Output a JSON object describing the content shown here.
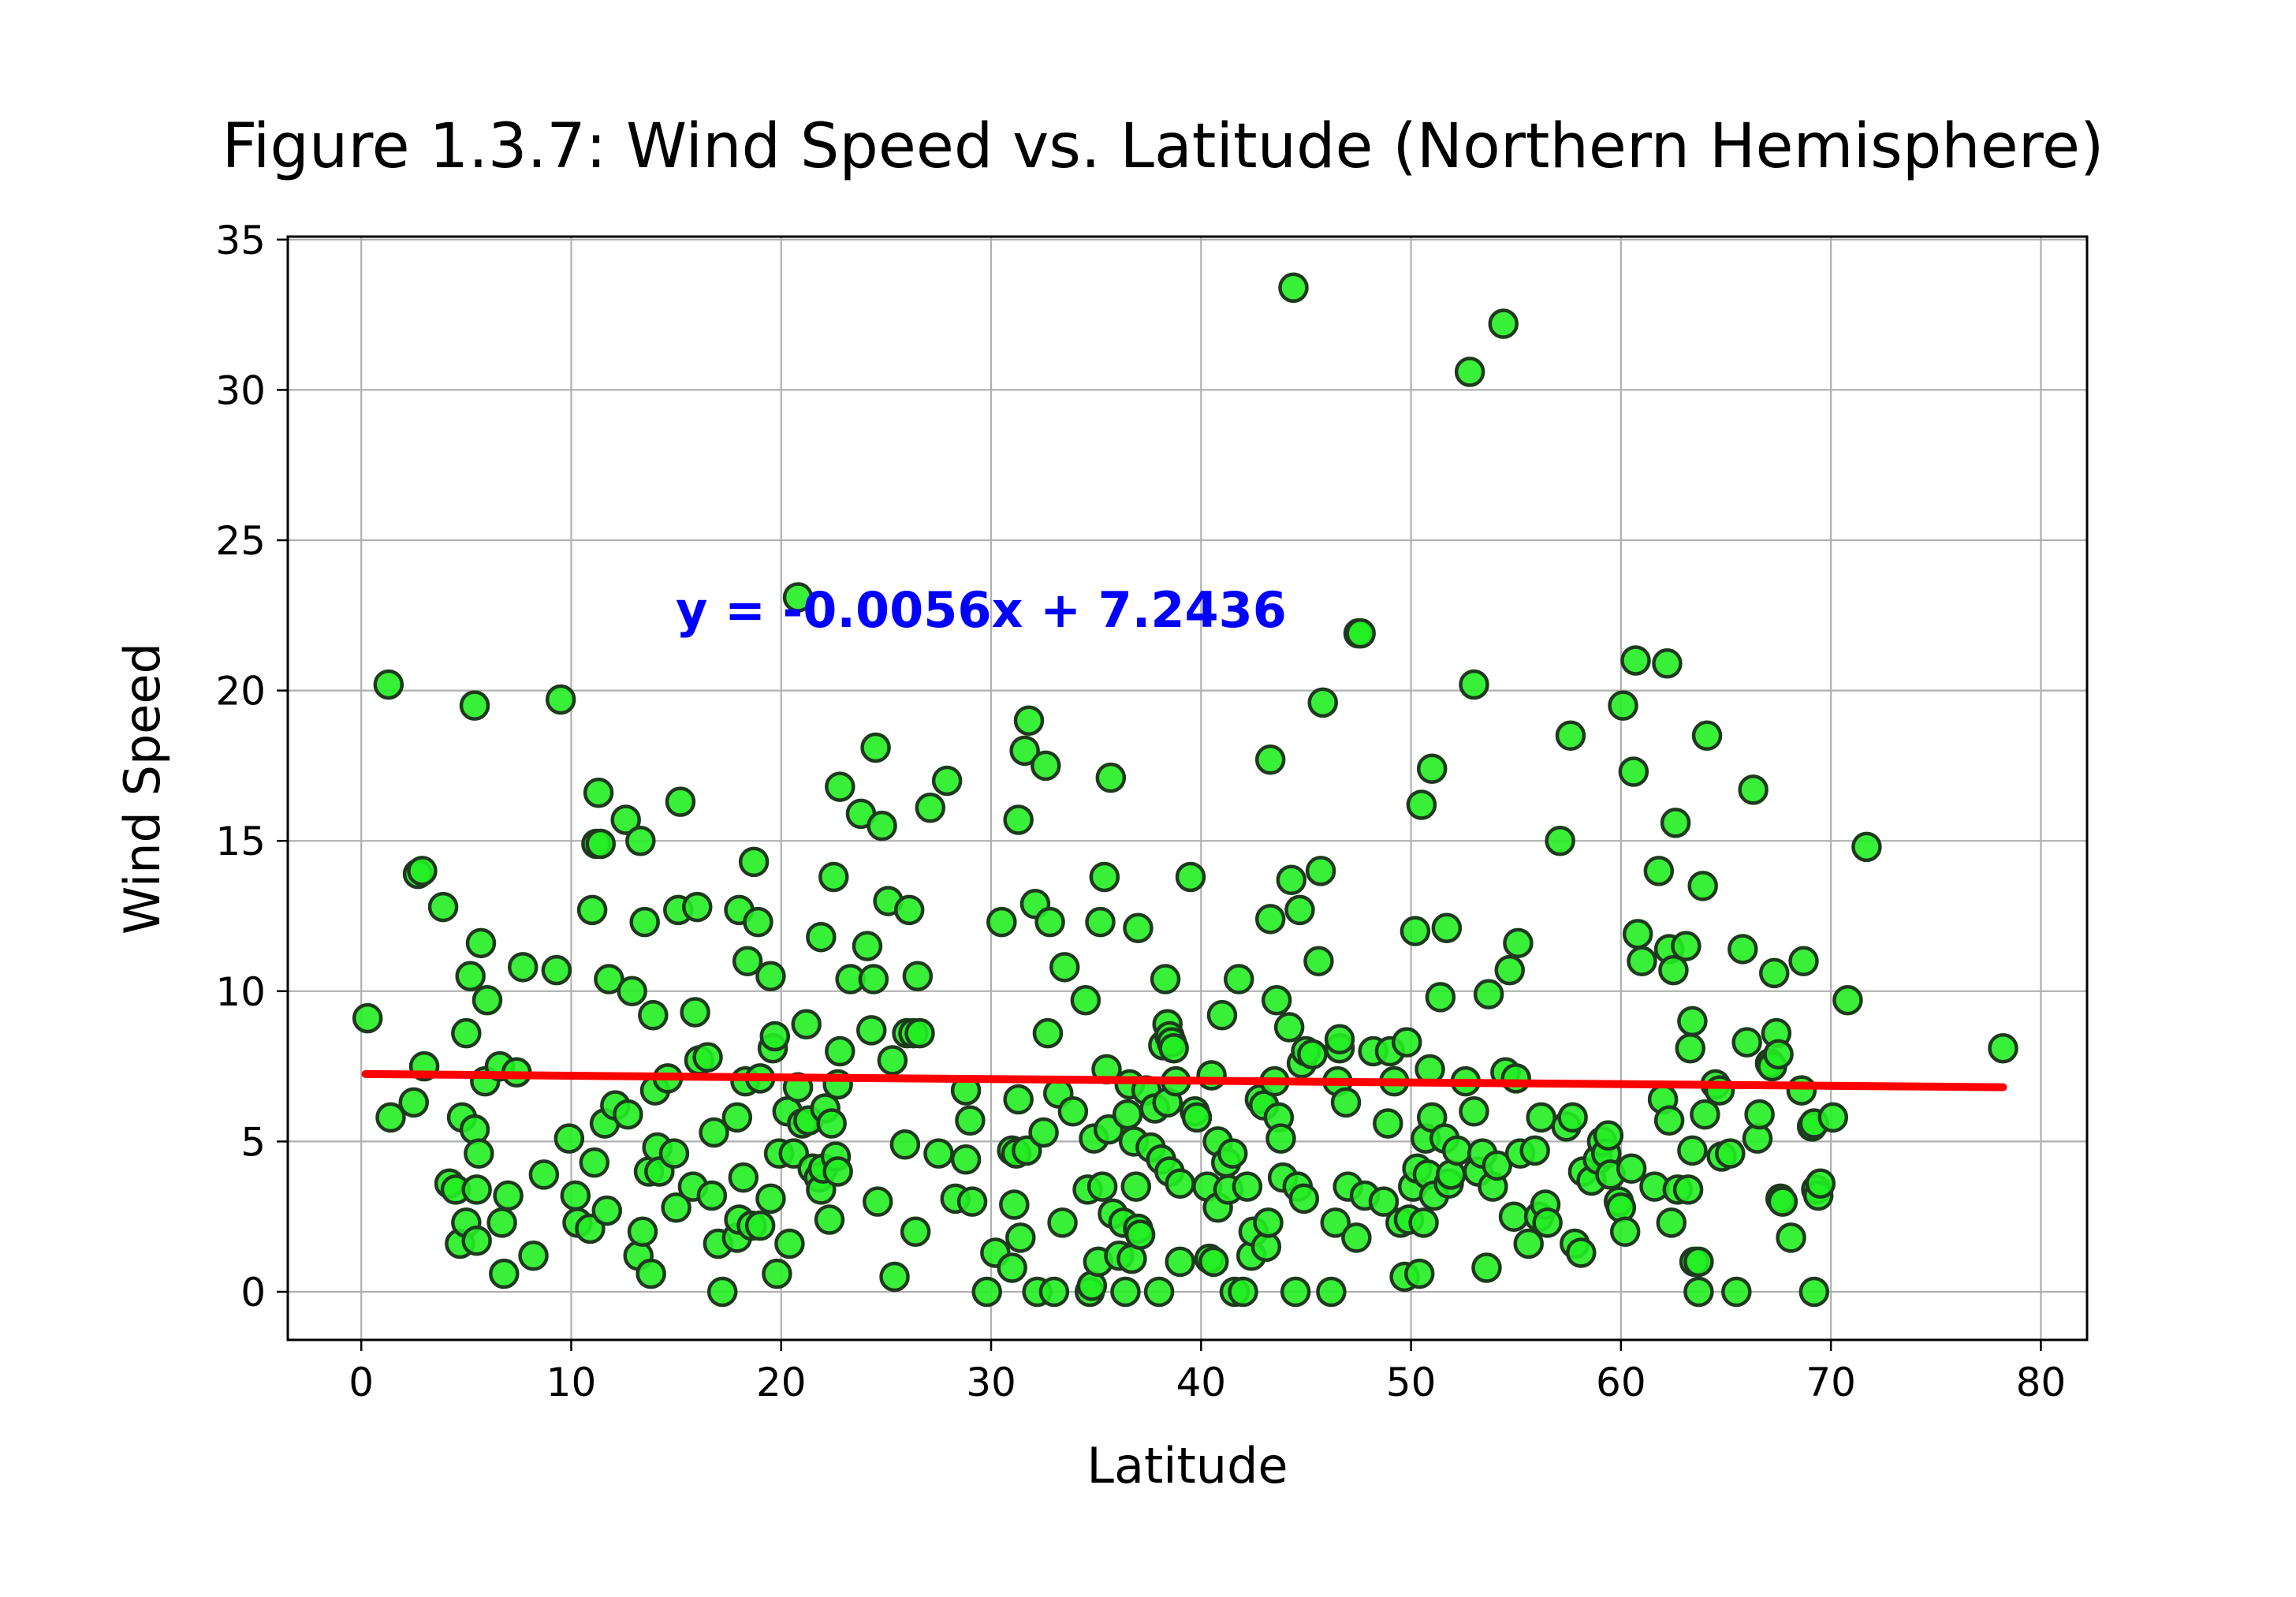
{
  "chart_data": {
    "type": "scatter",
    "title": "Figure 1.3.7: Wind Speed vs. Latitude (Northern Hemisphere)",
    "xlabel": "Latitude",
    "ylabel": "Wind Speed",
    "xlim": [
      -3.5,
      82.2
    ],
    "ylim": [
      -1.6,
      35.1
    ],
    "xticks": [
      0,
      10,
      20,
      30,
      40,
      50,
      60,
      70,
      80
    ],
    "yticks": [
      0,
      5,
      10,
      15,
      20,
      25,
      30,
      35
    ],
    "grid": true,
    "annotation": "y = -0.0056x + 7.2436",
    "regression": {
      "slope": -0.0056,
      "intercept": 7.2436,
      "x_range": [
        0.2,
        78.2
      ]
    },
    "colors": {
      "marker_fill": "#22ee22",
      "marker_edge": "#1e3a1e",
      "regression_line": "#ff0000",
      "annotation": "#0000ff",
      "grid": "#b0b0b0"
    },
    "points": [
      [
        0.3,
        9.1
      ],
      [
        1.3,
        20.2
      ],
      [
        1.4,
        5.8
      ],
      [
        2.5,
        6.3
      ],
      [
        2.7,
        13.9
      ],
      [
        2.9,
        14.0
      ],
      [
        3.0,
        7.5
      ],
      [
        3.9,
        12.8
      ],
      [
        4.2,
        3.6
      ],
      [
        4.5,
        3.4
      ],
      [
        4.7,
        1.6
      ],
      [
        4.8,
        5.8
      ],
      [
        5.0,
        2.3
      ],
      [
        5.0,
        8.6
      ],
      [
        5.2,
        10.5
      ],
      [
        5.4,
        19.5
      ],
      [
        5.4,
        5.4
      ],
      [
        5.5,
        1.7
      ],
      [
        5.5,
        3.4
      ],
      [
        5.6,
        4.6
      ],
      [
        5.7,
        11.6
      ],
      [
        5.9,
        7.0
      ],
      [
        6.0,
        9.7
      ],
      [
        6.6,
        7.5
      ],
      [
        6.7,
        2.3
      ],
      [
        6.8,
        0.6
      ],
      [
        7.0,
        3.2
      ],
      [
        7.4,
        7.3
      ],
      [
        7.7,
        10.8
      ],
      [
        8.2,
        1.2
      ],
      [
        8.7,
        3.9
      ],
      [
        9.3,
        10.7
      ],
      [
        9.5,
        19.7
      ],
      [
        9.9,
        5.1
      ],
      [
        10.2,
        3.2
      ],
      [
        10.3,
        2.3
      ],
      [
        10.9,
        2.1
      ],
      [
        11.0,
        12.7
      ],
      [
        11.1,
        4.3
      ],
      [
        11.2,
        14.9
      ],
      [
        11.3,
        16.6
      ],
      [
        11.4,
        14.9
      ],
      [
        11.6,
        5.6
      ],
      [
        11.7,
        2.7
      ],
      [
        11.8,
        10.4
      ],
      [
        12.1,
        6.2
      ],
      [
        12.6,
        15.7
      ],
      [
        12.7,
        5.9
      ],
      [
        12.9,
        10.0
      ],
      [
        13.2,
        1.2
      ],
      [
        13.3,
        15.0
      ],
      [
        13.4,
        2.0
      ],
      [
        13.5,
        12.3
      ],
      [
        13.7,
        4.0
      ],
      [
        13.8,
        0.6
      ],
      [
        13.9,
        9.2
      ],
      [
        14.0,
        6.7
      ],
      [
        14.1,
        4.8
      ],
      [
        14.2,
        4.0
      ],
      [
        14.6,
        7.1
      ],
      [
        14.9,
        4.6
      ],
      [
        15.0,
        2.8
      ],
      [
        15.1,
        12.7
      ],
      [
        15.2,
        16.3
      ],
      [
        15.8,
        3.5
      ],
      [
        15.9,
        9.3
      ],
      [
        16.0,
        12.8
      ],
      [
        16.1,
        7.7
      ],
      [
        16.5,
        7.8
      ],
      [
        16.7,
        3.2
      ],
      [
        16.8,
        5.3
      ],
      [
        17.0,
        1.6
      ],
      [
        17.2,
        0.0
      ],
      [
        17.9,
        1.8
      ],
      [
        17.9,
        5.8
      ],
      [
        18.0,
        12.7
      ],
      [
        18.0,
        2.4
      ],
      [
        18.2,
        3.8
      ],
      [
        18.3,
        7.0
      ],
      [
        18.4,
        11.0
      ],
      [
        18.6,
        2.2
      ],
      [
        18.7,
        14.3
      ],
      [
        18.9,
        12.3
      ],
      [
        19.0,
        7.1
      ],
      [
        19.0,
        2.2
      ],
      [
        19.5,
        3.1
      ],
      [
        19.5,
        10.5
      ],
      [
        19.6,
        8.1
      ],
      [
        19.7,
        8.5
      ],
      [
        19.8,
        0.6
      ],
      [
        19.9,
        4.6
      ],
      [
        20.3,
        6.0
      ],
      [
        20.4,
        1.6
      ],
      [
        20.6,
        4.6
      ],
      [
        20.8,
        23.1
      ],
      [
        20.8,
        6.8
      ],
      [
        21.0,
        5.6
      ],
      [
        21.2,
        8.9
      ],
      [
        21.3,
        5.7
      ],
      [
        21.5,
        4.1
      ],
      [
        21.8,
        3.8
      ],
      [
        21.9,
        11.8
      ],
      [
        21.9,
        3.4
      ],
      [
        22.0,
        4.1
      ],
      [
        22.1,
        6.1
      ],
      [
        22.3,
        2.4
      ],
      [
        22.4,
        5.6
      ],
      [
        22.5,
        13.8
      ],
      [
        22.6,
        4.5
      ],
      [
        22.7,
        6.9
      ],
      [
        22.7,
        4.0
      ],
      [
        22.8,
        16.8
      ],
      [
        22.8,
        8.0
      ],
      [
        23.3,
        10.4
      ],
      [
        23.8,
        15.9
      ],
      [
        24.1,
        11.5
      ],
      [
        24.3,
        8.7
      ],
      [
        24.4,
        10.4
      ],
      [
        24.5,
        18.1
      ],
      [
        24.6,
        3.0
      ],
      [
        24.8,
        15.5
      ],
      [
        25.1,
        13.0
      ],
      [
        25.3,
        7.7
      ],
      [
        25.4,
        0.5
      ],
      [
        25.9,
        4.9
      ],
      [
        26.0,
        8.6
      ],
      [
        26.1,
        12.7
      ],
      [
        26.3,
        8.6
      ],
      [
        26.4,
        2.0
      ],
      [
        26.5,
        10.5
      ],
      [
        26.6,
        8.6
      ],
      [
        27.1,
        16.1
      ],
      [
        27.5,
        4.6
      ],
      [
        27.9,
        17.0
      ],
      [
        28.3,
        3.1
      ],
      [
        28.8,
        6.7
      ],
      [
        28.8,
        4.4
      ],
      [
        29.0,
        5.7
      ],
      [
        29.1,
        3.0
      ],
      [
        29.8,
        0.0
      ],
      [
        30.2,
        1.3
      ],
      [
        30.5,
        12.3
      ],
      [
        31.0,
        4.7
      ],
      [
        31.0,
        0.8
      ],
      [
        31.1,
        2.9
      ],
      [
        31.2,
        4.6
      ],
      [
        31.3,
        15.7
      ],
      [
        31.3,
        6.4
      ],
      [
        31.4,
        1.8
      ],
      [
        31.6,
        18.0
      ],
      [
        31.7,
        4.7
      ],
      [
        31.8,
        19.0
      ],
      [
        32.1,
        12.9
      ],
      [
        32.2,
        0.0
      ],
      [
        32.5,
        5.3
      ],
      [
        32.6,
        17.5
      ],
      [
        32.7,
        8.6
      ],
      [
        32.8,
        12.3
      ],
      [
        33.0,
        0.0
      ],
      [
        33.2,
        6.6
      ],
      [
        33.4,
        2.3
      ],
      [
        33.5,
        10.8
      ],
      [
        33.9,
        6.0
      ],
      [
        34.5,
        9.7
      ],
      [
        34.6,
        3.4
      ],
      [
        34.7,
        0.0
      ],
      [
        34.8,
        0.2
      ],
      [
        34.9,
        5.1
      ],
      [
        35.1,
        1.0
      ],
      [
        35.2,
        12.3
      ],
      [
        35.3,
        3.5
      ],
      [
        35.4,
        13.8
      ],
      [
        35.5,
        7.4
      ],
      [
        35.6,
        5.4
      ],
      [
        35.7,
        17.1
      ],
      [
        35.8,
        2.6
      ],
      [
        36.1,
        1.2
      ],
      [
        36.3,
        2.3
      ],
      [
        36.4,
        0.0
      ],
      [
        36.5,
        5.9
      ],
      [
        36.6,
        6.9
      ],
      [
        36.7,
        1.1
      ],
      [
        36.8,
        5.0
      ],
      [
        36.9,
        3.5
      ],
      [
        37.0,
        2.1
      ],
      [
        37.0,
        12.1
      ],
      [
        37.1,
        1.9
      ],
      [
        37.4,
        6.7
      ],
      [
        37.6,
        4.8
      ],
      [
        37.8,
        6.1
      ],
      [
        38.0,
        0.0
      ],
      [
        38.1,
        4.4
      ],
      [
        38.2,
        8.2
      ],
      [
        38.3,
        10.4
      ],
      [
        38.4,
        8.9
      ],
      [
        38.4,
        6.3
      ],
      [
        38.5,
        8.5
      ],
      [
        38.5,
        4.0
      ],
      [
        38.6,
        8.3
      ],
      [
        38.7,
        8.1
      ],
      [
        38.8,
        7.0
      ],
      [
        39.0,
        3.6
      ],
      [
        39.0,
        1.0
      ],
      [
        39.5,
        13.8
      ],
      [
        39.7,
        6.0
      ],
      [
        39.8,
        5.8
      ],
      [
        40.3,
        3.5
      ],
      [
        40.4,
        1.1
      ],
      [
        40.5,
        7.2
      ],
      [
        40.6,
        1.0
      ],
      [
        40.8,
        2.8
      ],
      [
        40.8,
        5.0
      ],
      [
        41.0,
        9.2
      ],
      [
        41.2,
        4.3
      ],
      [
        41.3,
        3.4
      ],
      [
        41.5,
        4.6
      ],
      [
        41.6,
        0.0
      ],
      [
        41.8,
        10.4
      ],
      [
        42.0,
        0.0
      ],
      [
        42.2,
        3.5
      ],
      [
        42.4,
        1.2
      ],
      [
        42.5,
        2.0
      ],
      [
        42.8,
        6.4
      ],
      [
        43.0,
        6.2
      ],
      [
        43.1,
        1.5
      ],
      [
        43.2,
        2.3
      ],
      [
        43.3,
        12.4
      ],
      [
        43.3,
        17.7
      ],
      [
        43.5,
        7.0
      ],
      [
        43.6,
        9.7
      ],
      [
        43.7,
        5.8
      ],
      [
        43.8,
        5.1
      ],
      [
        43.9,
        3.8
      ],
      [
        44.2,
        8.8
      ],
      [
        44.3,
        13.7
      ],
      [
        44.4,
        33.4
      ],
      [
        44.5,
        0.0
      ],
      [
        44.6,
        3.5
      ],
      [
        44.7,
        12.7
      ],
      [
        44.8,
        7.6
      ],
      [
        44.9,
        3.1
      ],
      [
        45.0,
        8.0
      ],
      [
        45.3,
        7.9
      ],
      [
        45.6,
        11.0
      ],
      [
        45.7,
        14.0
      ],
      [
        45.8,
        19.6
      ],
      [
        46.2,
        0.0
      ],
      [
        46.4,
        2.3
      ],
      [
        46.5,
        7.0
      ],
      [
        46.6,
        8.1
      ],
      [
        46.6,
        8.4
      ],
      [
        46.9,
        6.3
      ],
      [
        47.0,
        3.5
      ],
      [
        47.4,
        1.8
      ],
      [
        47.5,
        21.9
      ],
      [
        47.6,
        21.9
      ],
      [
        47.8,
        3.2
      ],
      [
        48.2,
        8.0
      ],
      [
        48.7,
        3.0
      ],
      [
        48.9,
        5.6
      ],
      [
        49.0,
        8.0
      ],
      [
        49.2,
        7.0
      ],
      [
        49.5,
        2.3
      ],
      [
        49.7,
        0.5
      ],
      [
        49.8,
        8.3
      ],
      [
        49.9,
        2.4
      ],
      [
        50.1,
        3.5
      ],
      [
        50.2,
        12.0
      ],
      [
        50.3,
        4.1
      ],
      [
        50.4,
        0.6
      ],
      [
        50.5,
        16.2
      ],
      [
        50.6,
        2.3
      ],
      [
        50.7,
        5.1
      ],
      [
        50.8,
        3.9
      ],
      [
        50.9,
        7.4
      ],
      [
        51.0,
        17.4
      ],
      [
        51.0,
        5.8
      ],
      [
        51.1,
        3.2
      ],
      [
        51.4,
        9.8
      ],
      [
        51.6,
        5.1
      ],
      [
        51.7,
        12.1
      ],
      [
        51.8,
        3.6
      ],
      [
        51.9,
        3.9
      ],
      [
        52.2,
        4.7
      ],
      [
        52.6,
        7.0
      ],
      [
        52.8,
        30.6
      ],
      [
        53.0,
        20.2
      ],
      [
        53.0,
        6.0
      ],
      [
        53.2,
        4.0
      ],
      [
        53.4,
        4.6
      ],
      [
        53.6,
        0.8
      ],
      [
        53.7,
        9.9
      ],
      [
        53.9,
        3.5
      ],
      [
        54.1,
        4.2
      ],
      [
        54.4,
        32.2
      ],
      [
        54.5,
        7.3
      ],
      [
        54.7,
        10.7
      ],
      [
        54.9,
        2.5
      ],
      [
        55.0,
        7.1
      ],
      [
        55.1,
        11.6
      ],
      [
        55.2,
        4.6
      ],
      [
        55.6,
        1.6
      ],
      [
        55.9,
        4.7
      ],
      [
        56.1,
        2.5
      ],
      [
        56.2,
        5.8
      ],
      [
        56.4,
        2.9
      ],
      [
        56.5,
        2.3
      ],
      [
        57.1,
        15.0
      ],
      [
        57.4,
        5.5
      ],
      [
        57.6,
        18.5
      ],
      [
        57.7,
        5.8
      ],
      [
        57.8,
        1.6
      ],
      [
        58.1,
        1.3
      ],
      [
        58.2,
        4.0
      ],
      [
        58.6,
        3.7
      ],
      [
        58.9,
        4.4
      ],
      [
        59.1,
        5.0
      ],
      [
        59.3,
        4.6
      ],
      [
        59.4,
        5.2
      ],
      [
        59.5,
        3.9
      ],
      [
        59.9,
        3.0
      ],
      [
        60.0,
        2.8
      ],
      [
        60.1,
        19.5
      ],
      [
        60.2,
        2.0
      ],
      [
        60.5,
        4.1
      ],
      [
        60.6,
        17.3
      ],
      [
        60.7,
        21.0
      ],
      [
        60.8,
        11.9
      ],
      [
        61.0,
        11.0
      ],
      [
        61.6,
        3.5
      ],
      [
        61.8,
        14.0
      ],
      [
        62.0,
        6.4
      ],
      [
        62.2,
        20.9
      ],
      [
        62.3,
        11.4
      ],
      [
        62.3,
        5.7
      ],
      [
        62.4,
        2.3
      ],
      [
        62.5,
        10.7
      ],
      [
        62.6,
        15.6
      ],
      [
        62.7,
        3.4
      ],
      [
        63.1,
        11.5
      ],
      [
        63.2,
        3.4
      ],
      [
        63.3,
        8.1
      ],
      [
        63.4,
        4.7
      ],
      [
        63.4,
        9.0
      ],
      [
        63.5,
        1.0
      ],
      [
        63.7,
        1.0
      ],
      [
        63.7,
        0.0
      ],
      [
        63.9,
        13.5
      ],
      [
        64.0,
        5.9
      ],
      [
        64.1,
        18.5
      ],
      [
        64.5,
        6.9
      ],
      [
        64.7,
        6.7
      ],
      [
        64.8,
        4.5
      ],
      [
        65.2,
        4.6
      ],
      [
        65.5,
        0.0
      ],
      [
        65.8,
        11.4
      ],
      [
        66.0,
        8.3
      ],
      [
        66.3,
        16.7
      ],
      [
        66.5,
        5.1
      ],
      [
        66.6,
        5.9
      ],
      [
        67.1,
        7.6
      ],
      [
        67.2,
        7.5
      ],
      [
        67.3,
        10.6
      ],
      [
        67.4,
        8.6
      ],
      [
        67.5,
        7.9
      ],
      [
        67.6,
        3.1
      ],
      [
        67.7,
        3.0
      ],
      [
        68.1,
        1.8
      ],
      [
        68.6,
        6.7
      ],
      [
        68.7,
        11.0
      ],
      [
        69.1,
        5.5
      ],
      [
        69.2,
        5.6
      ],
      [
        69.2,
        0.0
      ],
      [
        69.3,
        3.4
      ],
      [
        69.4,
        3.2
      ],
      [
        69.5,
        3.6
      ],
      [
        70.1,
        5.8
      ],
      [
        70.8,
        9.7
      ],
      [
        71.7,
        14.8
      ],
      [
        78.2,
        8.1
      ]
    ]
  }
}
